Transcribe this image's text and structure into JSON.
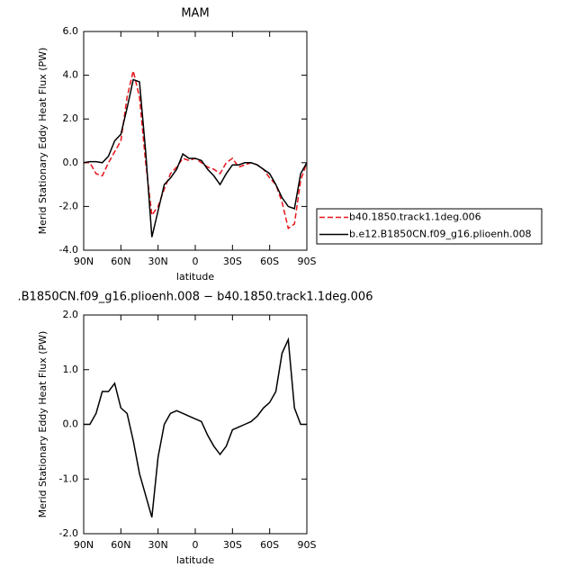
{
  "chart_data": [
    {
      "type": "line",
      "title": "MAM",
      "xlabel": "latitude",
      "ylabel": "Merid Stationary Eddy Heat Flux (PW)",
      "x": [
        90,
        85,
        80,
        75,
        70,
        65,
        60,
        55,
        50,
        45,
        40,
        35,
        30,
        25,
        20,
        15,
        10,
        5,
        0,
        -5,
        -10,
        -15,
        -20,
        -25,
        -30,
        -35,
        -40,
        -45,
        -50,
        -55,
        -60,
        -65,
        -70,
        -75,
        -80,
        -85,
        -90
      ],
      "xlim": [
        90,
        -90
      ],
      "xticks": [
        {
          "value": 90,
          "label": "90N"
        },
        {
          "value": 60,
          "label": "60N"
        },
        {
          "value": 30,
          "label": "30N"
        },
        0,
        {
          "value": -30,
          "label": "30S"
        },
        {
          "value": -60,
          "label": "60S"
        },
        {
          "value": -90,
          "label": "90S"
        }
      ],
      "ylim": [
        -4,
        6
      ],
      "yticks": [
        {
          "value": -4,
          "label": "-4.0"
        },
        {
          "value": -2,
          "label": "-2.0"
        },
        {
          "value": 0,
          "label": "0.0"
        },
        {
          "value": 2,
          "label": "2.0"
        },
        {
          "value": 4,
          "label": "4.0"
        },
        {
          "value": 6,
          "label": "6.0"
        }
      ],
      "legend": "right",
      "series": [
        {
          "name": "b40.1850.track1.1deg.006",
          "color": "#e8141a",
          "line_style": "dashed",
          "values": [
            0,
            0,
            -0.5,
            -0.6,
            0,
            0.5,
            1.0,
            3.0,
            4.2,
            3.0,
            0,
            -2.4,
            -2.0,
            -1.2,
            -0.5,
            -0.2,
            0.2,
            0.1,
            0.2,
            0,
            -0.2,
            -0.3,
            -0.5,
            0,
            0.2,
            -0.2,
            -0.1,
            0,
            -0.1,
            -0.3,
            -0.7,
            -1.0,
            -1.8,
            -3.0,
            -2.8,
            -0.8,
            0
          ]
        },
        {
          "name": "b.e12.B1850CN.f09_g16.plioenh.008",
          "color": "#000000",
          "line_style": "solid",
          "values": [
            0,
            0.05,
            0.05,
            0,
            0.3,
            1.0,
            1.3,
            2.5,
            3.8,
            3.7,
            0.5,
            -3.4,
            -2.2,
            -1.0,
            -0.7,
            -0.3,
            0.4,
            0.2,
            0.2,
            0.1,
            -0.3,
            -0.6,
            -1.0,
            -0.5,
            -0.1,
            -0.1,
            0,
            0,
            -0.1,
            -0.3,
            -0.5,
            -1.0,
            -1.6,
            -2.0,
            -2.1,
            -0.5,
            0
          ]
        }
      ]
    },
    {
      "type": "line",
      "title": ".B1850CN.f09_g16.plioenh.008 − b40.1850.track1.1deg.006",
      "xlabel": "latitude",
      "ylabel": "Merid Stationary Eddy Heat Flux (PW)",
      "x": [
        90,
        85,
        80,
        75,
        70,
        65,
        60,
        55,
        50,
        45,
        40,
        35,
        30,
        25,
        20,
        15,
        10,
        5,
        0,
        -5,
        -10,
        -15,
        -20,
        -25,
        -30,
        -35,
        -40,
        -45,
        -50,
        -55,
        -60,
        -65,
        -70,
        -75,
        -80,
        -85,
        -90
      ],
      "xlim": [
        90,
        -90
      ],
      "xticks": [
        {
          "value": 90,
          "label": "90N"
        },
        {
          "value": 60,
          "label": "60N"
        },
        {
          "value": 30,
          "label": "30N"
        },
        0,
        {
          "value": -30,
          "label": "30S"
        },
        {
          "value": -60,
          "label": "60S"
        },
        {
          "value": -90,
          "label": "90S"
        }
      ],
      "ylim": [
        -2,
        2
      ],
      "yticks": [
        {
          "value": -2,
          "label": "-2.0"
        },
        {
          "value": -1,
          "label": "-1.0"
        },
        {
          "value": 0,
          "label": "0.0"
        },
        {
          "value": 1,
          "label": "1.0"
        },
        {
          "value": 2,
          "label": "2.0"
        }
      ],
      "series": [
        {
          "color": "#000000",
          "line_style": "solid",
          "values": [
            0,
            0,
            0.2,
            0.6,
            0.6,
            0.75,
            0.3,
            0.2,
            -0.3,
            -0.9,
            -1.3,
            -1.7,
            -0.6,
            0,
            0.2,
            0.25,
            0.2,
            0.15,
            0.1,
            0.05,
            -0.2,
            -0.4,
            -0.55,
            -0.4,
            -0.1,
            -0.05,
            0,
            0.05,
            0.15,
            0.3,
            0.4,
            0.6,
            1.3,
            1.55,
            0.3,
            0,
            0
          ]
        }
      ]
    }
  ]
}
